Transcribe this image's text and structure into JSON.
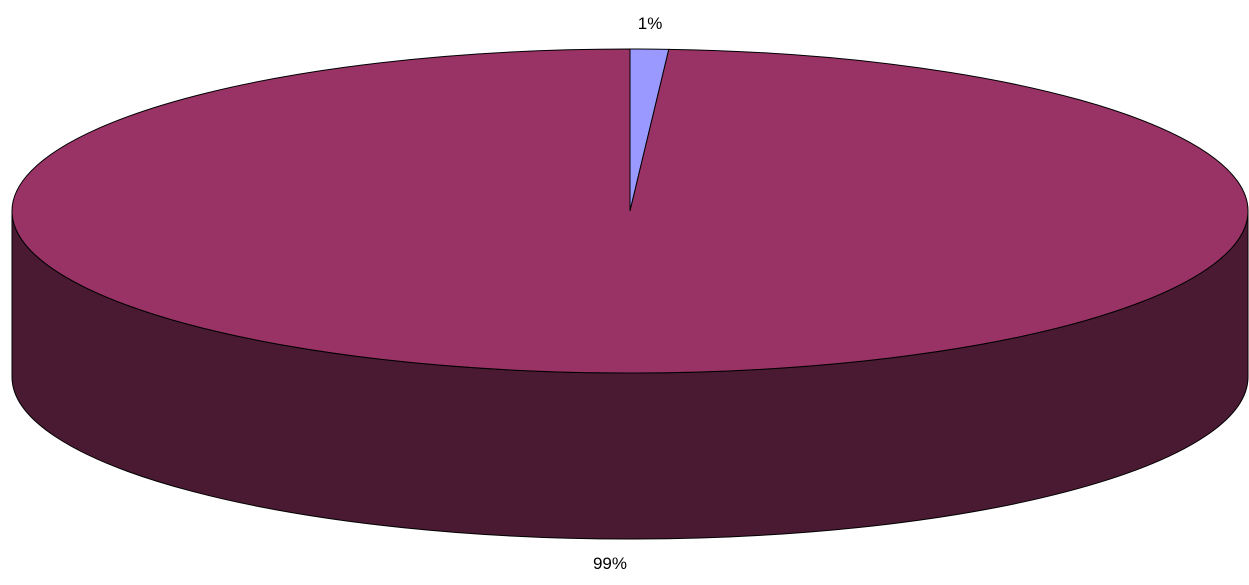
{
  "chart_data": {
    "type": "pie",
    "style": "3d",
    "slices": [
      {
        "value": 1,
        "label": "1%",
        "color": "#9999ff"
      },
      {
        "value": 99,
        "label": "99%",
        "color": "#993366"
      }
    ],
    "side_color": "#4a1a33",
    "edge_color": "#000000"
  }
}
